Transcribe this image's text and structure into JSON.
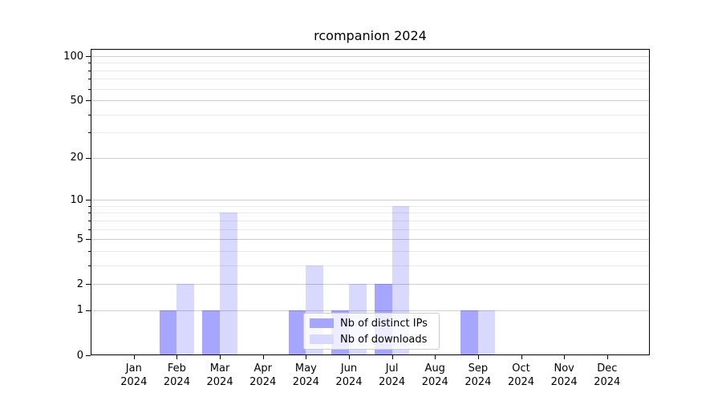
{
  "title": "rcompanion 2024",
  "chart_data": {
    "type": "bar",
    "title": "rcompanion 2024",
    "categories": [
      "Jan",
      "Feb",
      "Mar",
      "Apr",
      "May",
      "Jun",
      "Jul",
      "Aug",
      "Sep",
      "Oct",
      "Nov",
      "Dec"
    ],
    "x_year_label": "2024",
    "series": [
      {
        "name": "Nb of distinct IPs",
        "color": "#a6a6ff",
        "fill": "rgba(0,0,255,0.35)",
        "values": [
          0,
          1,
          1,
          0,
          1,
          1,
          2,
          0,
          1,
          0,
          0,
          0
        ]
      },
      {
        "name": "Nb of downloads",
        "color": "#d9d9ff",
        "fill": "rgba(0,0,255,0.15)",
        "values": [
          0,
          2,
          8,
          0,
          3,
          2,
          9,
          0,
          1,
          0,
          0,
          0
        ]
      }
    ],
    "y_axis": {
      "scale": "log1p",
      "range": [
        0,
        100
      ],
      "ticks": [
        0,
        1,
        2,
        5,
        10,
        20,
        50,
        100
      ],
      "minor_ticks": [
        3,
        4,
        6,
        7,
        8,
        9,
        30,
        40,
        60,
        70,
        80,
        90
      ]
    },
    "legend_position": "lower center",
    "grid": "horizontal"
  }
}
